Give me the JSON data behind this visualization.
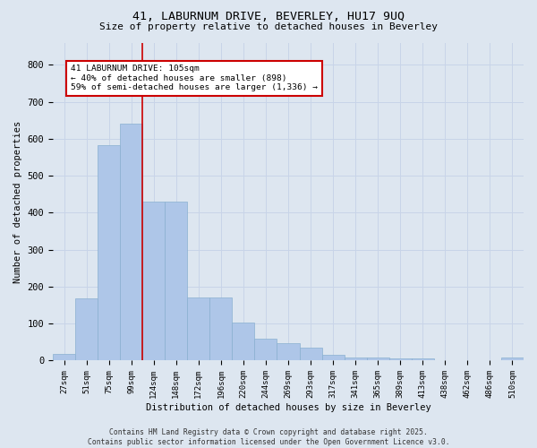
{
  "title": "41, LABURNUM DRIVE, BEVERLEY, HU17 9UQ",
  "subtitle": "Size of property relative to detached houses in Beverley",
  "xlabel": "Distribution of detached houses by size in Beverley",
  "ylabel": "Number of detached properties",
  "bin_labels": [
    "27sqm",
    "51sqm",
    "75sqm",
    "99sqm",
    "124sqm",
    "148sqm",
    "172sqm",
    "196sqm",
    "220sqm",
    "244sqm",
    "269sqm",
    "293sqm",
    "317sqm",
    "341sqm",
    "365sqm",
    "389sqm",
    "413sqm",
    "438sqm",
    "462sqm",
    "486sqm",
    "510sqm"
  ],
  "bar_values": [
    17,
    168,
    583,
    641,
    430,
    430,
    170,
    170,
    103,
    60,
    47,
    35,
    15,
    9,
    9,
    5,
    5,
    2,
    0,
    0,
    8
  ],
  "bar_color": "#aec6e8",
  "bar_edge_color": "#8ab0d0",
  "vline_color": "#cc0000",
  "vline_x_index": 3,
  "annotation_text": "41 LABURNUM DRIVE: 105sqm\n← 40% of detached houses are smaller (898)\n59% of semi-detached houses are larger (1,336) →",
  "annotation_box_color": "#ffffff",
  "annotation_box_edge_color": "#cc0000",
  "ylim": [
    0,
    860
  ],
  "yticks": [
    0,
    100,
    200,
    300,
    400,
    500,
    600,
    700,
    800
  ],
  "grid_color": "#c8d4e8",
  "bg_color": "#dde6f0",
  "footer": "Contains HM Land Registry data © Crown copyright and database right 2025.\nContains public sector information licensed under the Open Government Licence v3.0."
}
